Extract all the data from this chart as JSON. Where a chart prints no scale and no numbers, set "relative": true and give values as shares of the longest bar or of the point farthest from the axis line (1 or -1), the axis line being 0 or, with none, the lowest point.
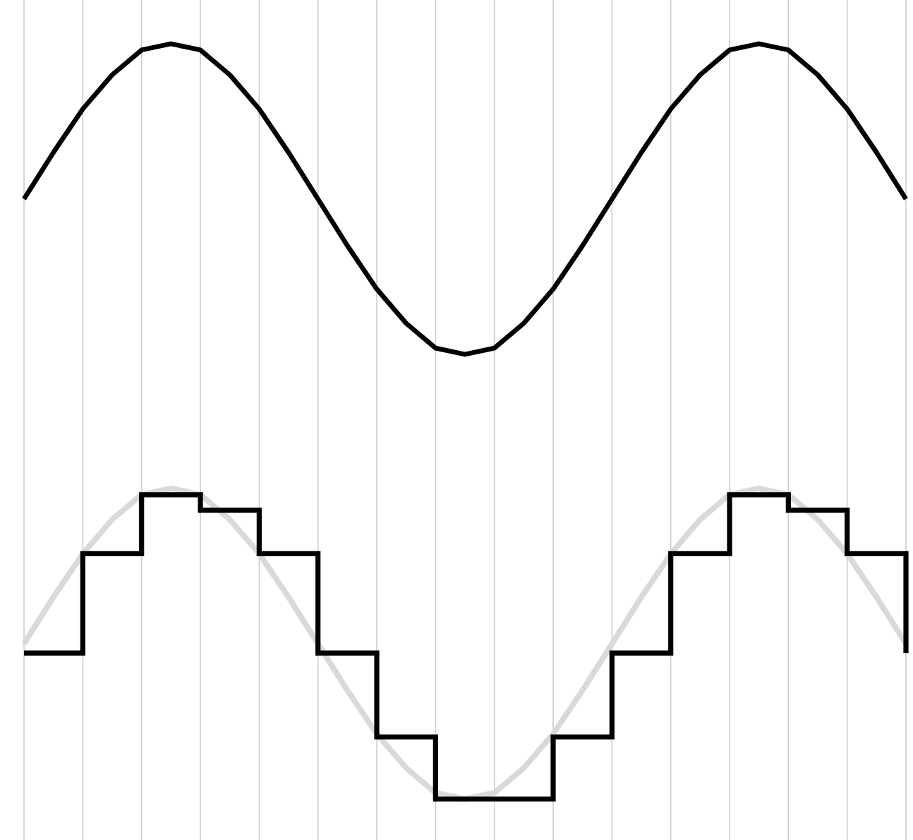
{
  "chart_data": [
    {
      "type": "line",
      "relative": true,
      "color": "#000000",
      "grid": "x",
      "tick_labels": false,
      "marker": "none",
      "line_style": "solid",
      "categories": [
        null,
        null,
        null,
        null,
        null,
        null,
        null,
        null,
        null,
        null,
        null,
        null,
        null,
        null,
        null,
        null,
        null,
        null,
        null,
        null,
        null,
        null,
        null,
        null,
        null,
        null,
        null,
        null,
        null,
        null,
        null
      ],
      "values": [
        0.5,
        0.65,
        0.79,
        0.9,
        0.98,
        1,
        0.98,
        0.9,
        0.79,
        0.65,
        0.5,
        0.35,
        0.21,
        0.1,
        0.02,
        0,
        0.02,
        0.1,
        0.21,
        0.35,
        0.5,
        0.65,
        0.79,
        0.9,
        0.98,
        1,
        0.98,
        0.9,
        0.79,
        0.65,
        0.5
      ]
    },
    {
      "type": "line",
      "relative": true,
      "grid": "x",
      "tick_labels": false,
      "marker": "none",
      "line_style": "solid",
      "categories": [
        null,
        null,
        null,
        null,
        null,
        null,
        null,
        null,
        null,
        null,
        null,
        null,
        null,
        null,
        null,
        null,
        null,
        null,
        null,
        null,
        null,
        null,
        null,
        null,
        null,
        null,
        null,
        null,
        null,
        null,
        null
      ],
      "series": [
        {
          "type": "line",
          "color": "#d9d9d9",
          "values": [
            0.5,
            0.65,
            0.79,
            0.9,
            0.98,
            1,
            0.98,
            0.9,
            0.79,
            0.65,
            0.5,
            0.35,
            0.21,
            0.1,
            0.02,
            0,
            0.02,
            0.1,
            0.21,
            0.35,
            0.5,
            0.65,
            0.79,
            0.9,
            0.98,
            1,
            0.98,
            0.9,
            0.79,
            0.65,
            0.5
          ]
        },
        {
          "type": "step",
          "color": "#000000",
          "values": [
            0.47,
            0.47,
            0.79,
            0.79,
            0.98,
            0.98,
            0.93,
            0.93,
            0.79,
            0.79,
            0.47,
            0.47,
            0.2,
            0.2,
            0,
            0,
            0,
            0,
            0.2,
            0.2,
            0.47,
            0.47,
            0.79,
            0.79,
            0.98,
            0.98,
            0.93,
            0.93,
            0.79,
            0.79,
            0.47
          ]
        }
      ]
    }
  ]
}
